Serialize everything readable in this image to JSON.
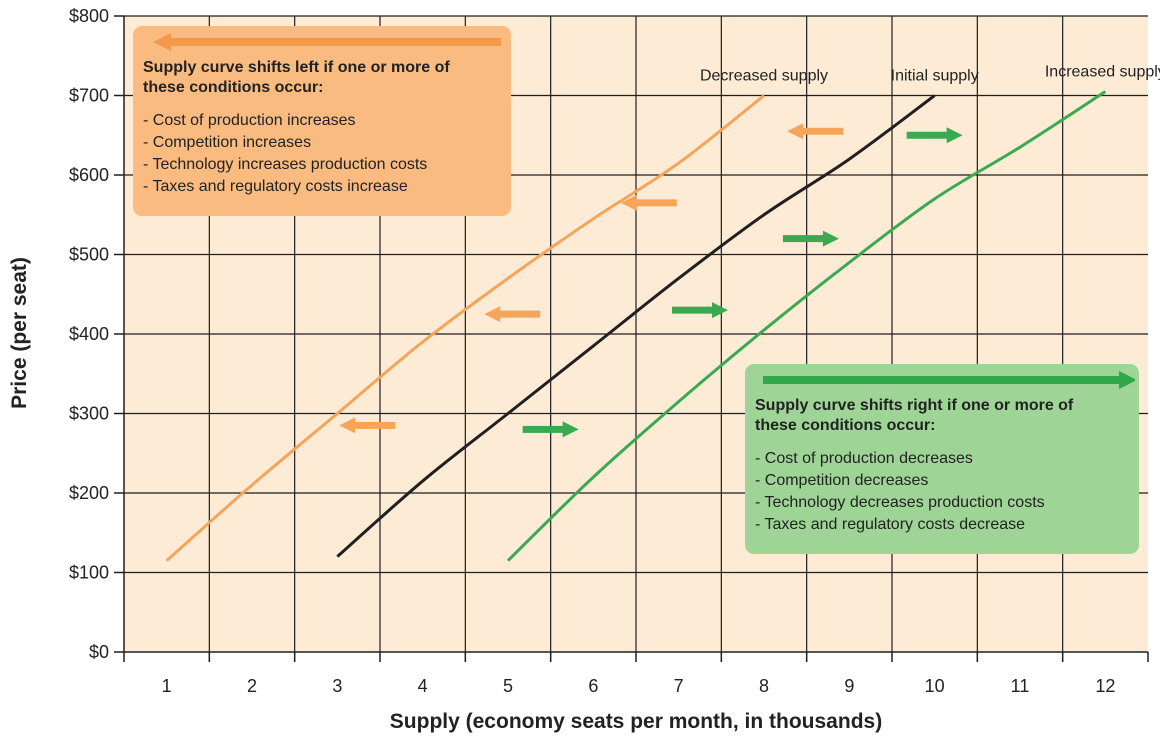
{
  "chart_data": {
    "type": "line",
    "xlabel": "Supply (economy seats per month, in thousands)",
    "ylabel": "Price (per seat)",
    "xlim": [
      0.5,
      12.5
    ],
    "ylim": [
      0,
      800
    ],
    "x_ticks": [
      "1",
      "2",
      "3",
      "4",
      "5",
      "6",
      "7",
      "8",
      "9",
      "10",
      "11",
      "12"
    ],
    "y_ticks": [
      "$0",
      "$100",
      "$200",
      "$300",
      "$400",
      "$500",
      "$600",
      "$700",
      "$800"
    ],
    "grid": true,
    "background": "#fdebd6",
    "series": [
      {
        "name": "Decreased supply",
        "color": "#f5a55a",
        "points": [
          [
            1,
            115
          ],
          [
            2,
            210
          ],
          [
            3,
            300
          ],
          [
            4,
            390
          ],
          [
            5,
            470
          ],
          [
            6,
            545
          ],
          [
            7,
            615
          ],
          [
            8,
            700
          ]
        ]
      },
      {
        "name": "Initial supply",
        "color": "#231f20",
        "points": [
          [
            3,
            120
          ],
          [
            4,
            215
          ],
          [
            5,
            300
          ],
          [
            6,
            385
          ],
          [
            7,
            470
          ],
          [
            8,
            550
          ],
          [
            9,
            620
          ],
          [
            10,
            700
          ]
        ]
      },
      {
        "name": "Increased supply",
        "color": "#3aaa52",
        "points": [
          [
            5,
            115
          ],
          [
            6,
            220
          ],
          [
            7,
            315
          ],
          [
            8,
            405
          ],
          [
            9,
            490
          ],
          [
            10,
            570
          ],
          [
            11,
            635
          ],
          [
            12,
            705
          ]
        ]
      }
    ],
    "shift_arrows": [
      {
        "direction": "left",
        "color": "#f5a55a",
        "x": 3.35,
        "y": 285
      },
      {
        "direction": "left",
        "color": "#f5a55a",
        "x": 5.05,
        "y": 425
      },
      {
        "direction": "left",
        "color": "#f5a55a",
        "x": 6.65,
        "y": 565
      },
      {
        "direction": "left",
        "color": "#f5a55a",
        "x": 8.6,
        "y": 655
      },
      {
        "direction": "right",
        "color": "#3aaa52",
        "x": 5.5,
        "y": 280
      },
      {
        "direction": "right",
        "color": "#3aaa52",
        "x": 7.25,
        "y": 430
      },
      {
        "direction": "right",
        "color": "#3aaa52",
        "x": 8.55,
        "y": 520
      },
      {
        "direction": "right",
        "color": "#3aaa52",
        "x": 10.0,
        "y": 650
      }
    ]
  },
  "boxes": {
    "left": {
      "title_line1": "Supply curve shifts left if one or more of",
      "title_line2": "these conditions occur:",
      "items": [
        "- Cost of production increases",
        "- Competition increases",
        "- Technology increases production costs",
        "- Taxes and regulatory costs increase"
      ],
      "color": "#f9bb80",
      "arrow_color": "#f39a4a"
    },
    "right": {
      "title_line1": "Supply curve shifts right if one or more of",
      "title_line2": "these conditions occur:",
      "items": [
        "- Cost of production decreases",
        "- Competition decreases",
        "- Technology decreases production costs",
        "- Taxes and regulatory costs decrease"
      ],
      "color": "#9ed596",
      "arrow_color": "#2ea84a"
    }
  }
}
